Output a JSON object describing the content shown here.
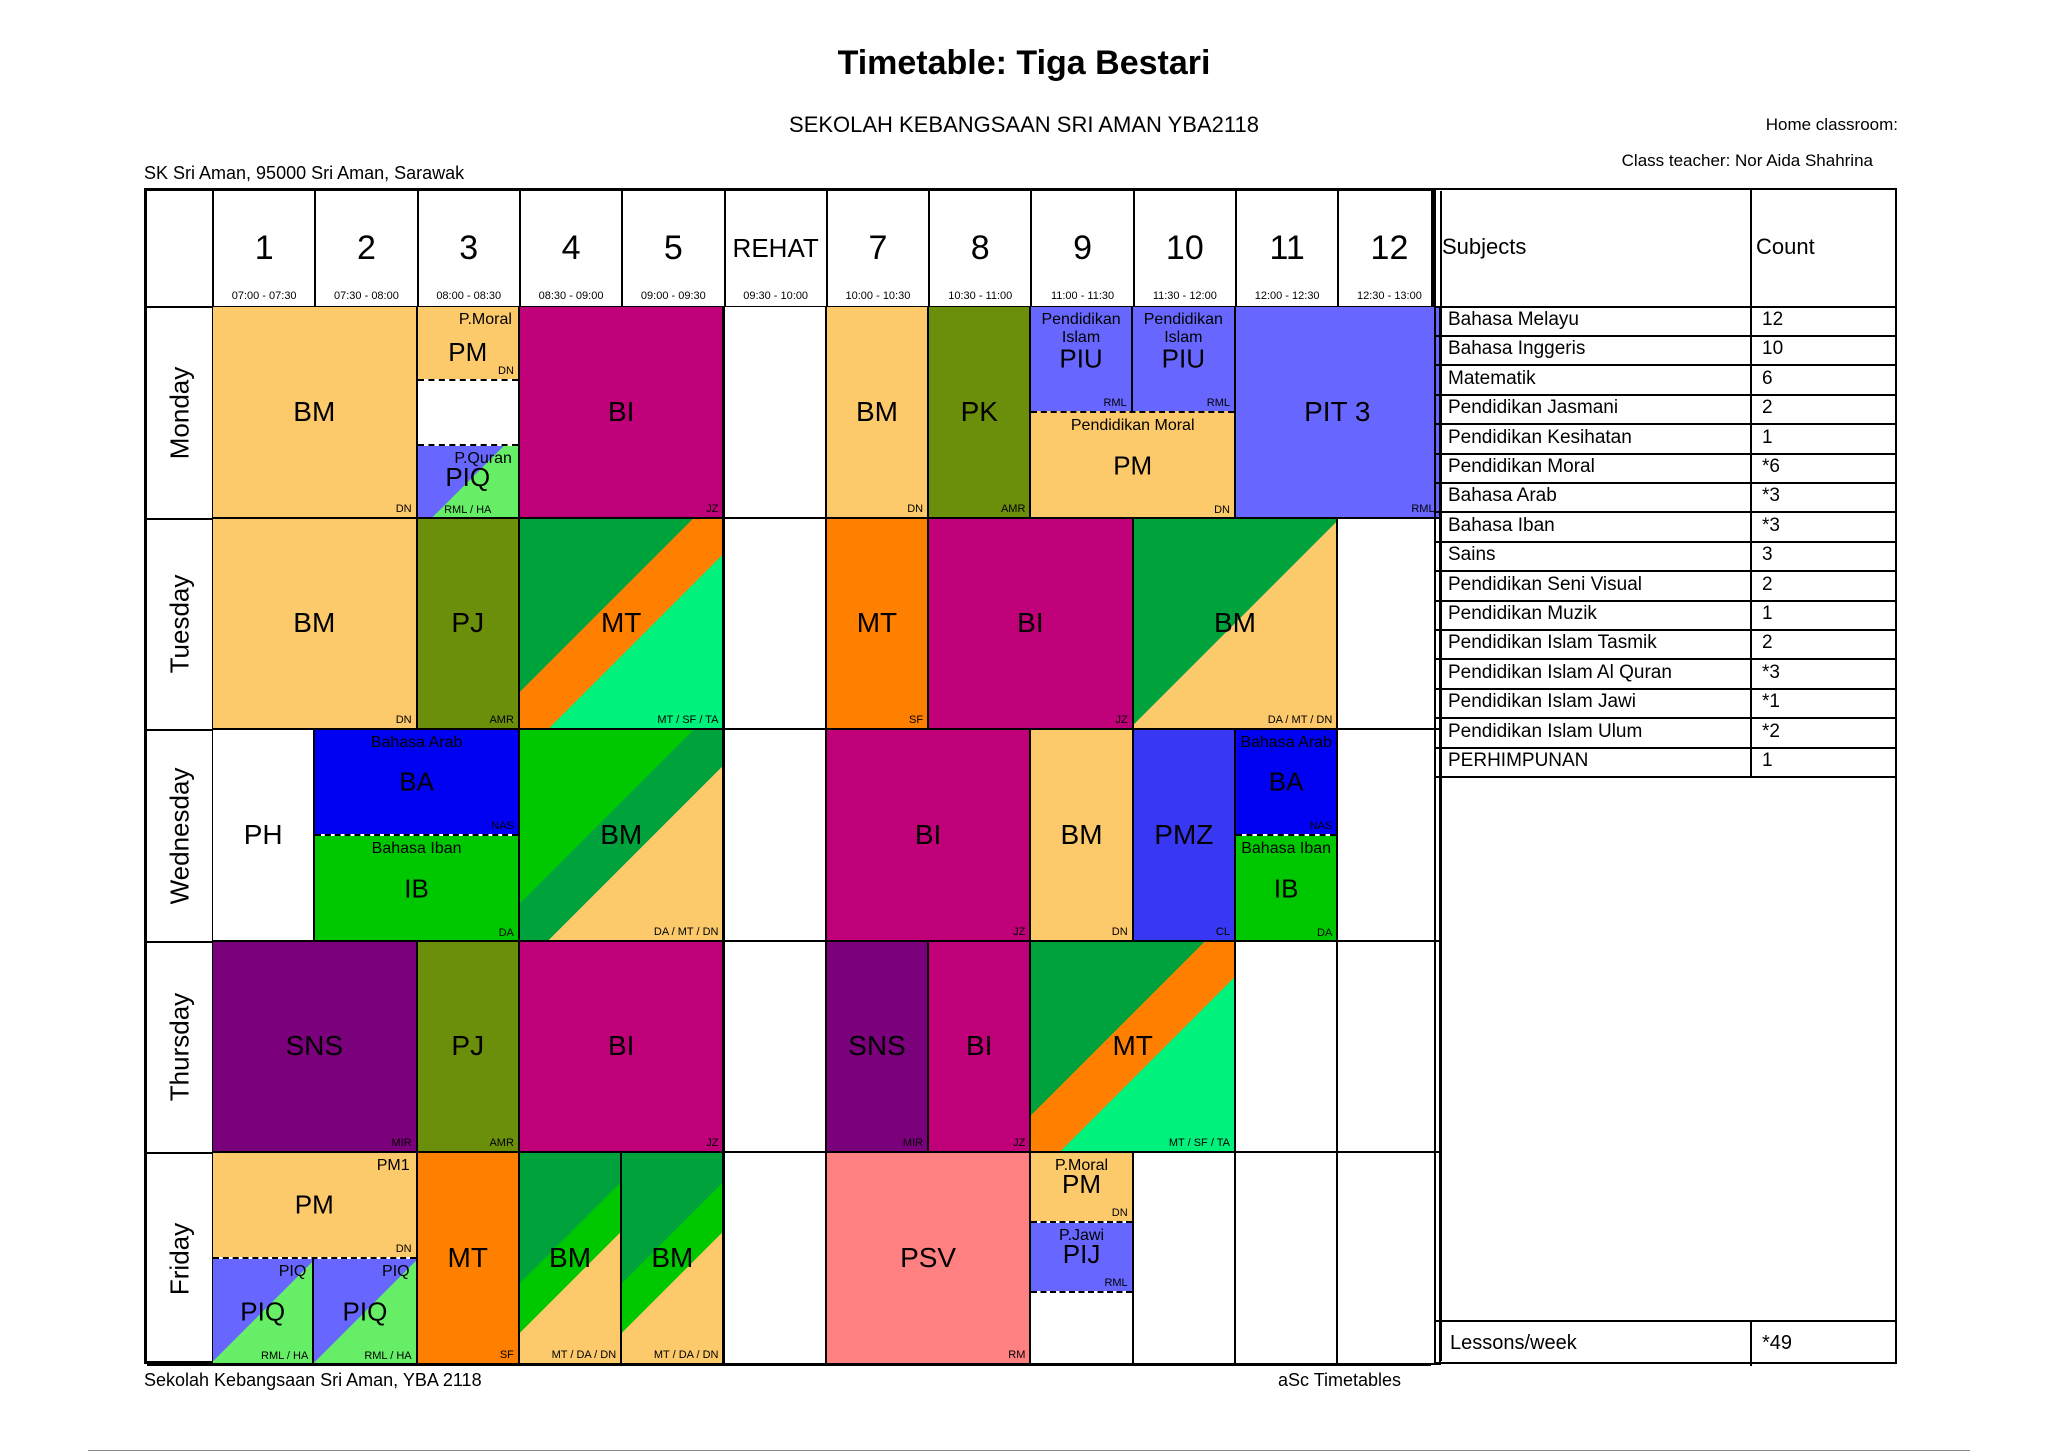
{
  "header": {
    "title": "Timetable: Tiga Bestari",
    "school": "SEKOLAH KEBANGSAAN SRI AMAN YBA2118",
    "address": "SK Sri Aman, 95000 Sri Aman, Sarawak",
    "home_classroom": "Home classroom:",
    "class_teacher": "Class teacher: Nor Aida Shahrina"
  },
  "footer": {
    "left": "Sekolah Kebangsaan Sri Aman, YBA 2118",
    "right": "aSc Timetables"
  },
  "colors": {
    "bm": "#FCC96B",
    "bi": "#BF0078",
    "pk": "#6B8E0B",
    "piu": "#6767FF",
    "pit": "#6767FF",
    "mt_a": "#00A23C",
    "mt_b": "#FF7F00",
    "mt_c": "#00F27D",
    "orange": "#FF8000",
    "ba": "#0000F2",
    "ib": "#00C800",
    "sns": "#7B007B",
    "pmz": "#3838F2",
    "psv": "#FF8080",
    "piq_a": "#6767FF",
    "piq_b": "#66EE66"
  },
  "periods": [
    {
      "name": "1",
      "time": "07:00 - 07:30"
    },
    {
      "name": "2",
      "time": "07:30 - 08:00"
    },
    {
      "name": "3",
      "time": "08:00 - 08:30"
    },
    {
      "name": "4",
      "time": "08:30 - 09:00"
    },
    {
      "name": "5",
      "time": "09:00 - 09:30"
    },
    {
      "name": "REHAT",
      "time": "09:30 - 10:00"
    },
    {
      "name": "7",
      "time": "10:00 - 10:30"
    },
    {
      "name": "8",
      "time": "10:30 - 11:00"
    },
    {
      "name": "9",
      "time": "11:00 - 11:30"
    },
    {
      "name": "10",
      "time": "11:30 - 12:00"
    },
    {
      "name": "11",
      "time": "12:00 - 12:30"
    },
    {
      "name": "12",
      "time": "12:30 - 13:00"
    }
  ],
  "days": [
    "Monday",
    "Tuesday",
    "Wednesday",
    "Thursday",
    "Friday"
  ],
  "lessons": {
    "mon_bm": {
      "subject": "BM",
      "teacher": "DN"
    },
    "mon_pm_top": {
      "label": "P.Moral",
      "subject": "PM",
      "teacher": "DN"
    },
    "mon_piq": {
      "label": "P.Quran",
      "subject": "PIQ",
      "teacher": "RML / HA"
    },
    "mon_bi": {
      "subject": "BI",
      "teacher": "JZ"
    },
    "mon_bm7": {
      "subject": "BM",
      "teacher": "DN"
    },
    "mon_pk": {
      "subject": "PK",
      "teacher": "AMR"
    },
    "mon_piu1": {
      "label": "Pendidikan Islam",
      "subject": "PIU",
      "teacher": "RML"
    },
    "mon_piu2": {
      "label": "Pendidikan Islam",
      "subject": "PIU",
      "teacher": "RML"
    },
    "mon_pm9": {
      "label": "Pendidikan Moral",
      "subject": "PM",
      "teacher": "DN"
    },
    "mon_pit": {
      "subject": "PIT 3",
      "teacher": "RML"
    },
    "tue_bm": {
      "subject": "BM",
      "teacher": "DN"
    },
    "tue_pj": {
      "subject": "PJ",
      "teacher": "AMR"
    },
    "tue_mt": {
      "subject": "MT",
      "teacher": "MT / SF / TA"
    },
    "tue_mt7": {
      "subject": "MT",
      "teacher": "SF"
    },
    "tue_bi": {
      "subject": "BI",
      "teacher": "JZ"
    },
    "tue_bm9": {
      "subject": "BM",
      "teacher": "DA / MT / DN"
    },
    "wed_ph": {
      "subject": "PH"
    },
    "wed_ba": {
      "label": "Bahasa Arab",
      "subject": "BA",
      "teacher": "NAS"
    },
    "wed_ib": {
      "label": "Bahasa Iban",
      "subject": "IB",
      "teacher": "DA"
    },
    "wed_bm": {
      "subject": "BM",
      "teacher": "DA / MT / DN"
    },
    "wed_bi": {
      "subject": "BI",
      "teacher": "JZ"
    },
    "wed_bm9": {
      "subject": "BM",
      "teacher": "DN"
    },
    "wed_pmz": {
      "subject": "PMZ",
      "teacher": "CL"
    },
    "wed_ba11": {
      "label": "Bahasa Arab",
      "subject": "BA",
      "teacher": "NAS"
    },
    "wed_ib11": {
      "label": "Bahasa Iban",
      "subject": "IB",
      "teacher": "DA"
    },
    "thu_sns": {
      "subject": "SNS",
      "teacher": "MIR"
    },
    "thu_pj": {
      "subject": "PJ",
      "teacher": "AMR"
    },
    "thu_bi": {
      "subject": "BI",
      "teacher": "JZ"
    },
    "thu_sns7": {
      "subject": "SNS",
      "teacher": "MIR"
    },
    "thu_bi8": {
      "subject": "BI",
      "teacher": "JZ"
    },
    "thu_mt": {
      "subject": "MT",
      "teacher": "MT / SF / TA"
    },
    "fri_pm": {
      "label": "PM1",
      "subject": "PM",
      "teacher": "DN"
    },
    "fri_piq1": {
      "label": "PIQ",
      "subject": "PIQ",
      "teacher": "RML / HA"
    },
    "fri_piq2": {
      "label": "PIQ",
      "subject": "PIQ",
      "teacher": "RML / HA"
    },
    "fri_mt": {
      "subject": "MT",
      "teacher": "SF"
    },
    "fri_bm4": {
      "subject": "BM",
      "teacher": "MT / DA / DN"
    },
    "fri_bm5": {
      "subject": "BM",
      "teacher": "MT / DA / DN"
    },
    "fri_psv": {
      "subject": "PSV",
      "teacher": "RM"
    },
    "fri_pm9": {
      "label": "P.Moral",
      "subject": "PM",
      "teacher": "DN"
    },
    "fri_pij": {
      "label": "P.Jawi",
      "subject": "PIJ",
      "teacher": "RML"
    }
  },
  "subjects_table": {
    "col_subjects": "Subjects",
    "col_count": "Count",
    "rows": [
      {
        "name": "Bahasa Melayu",
        "count": "12"
      },
      {
        "name": "Bahasa Inggeris",
        "count": "10"
      },
      {
        "name": "Matematik",
        "count": "6"
      },
      {
        "name": "Pendidikan Jasmani",
        "count": "2"
      },
      {
        "name": "Pendidikan Kesihatan",
        "count": "1"
      },
      {
        "name": "Pendidikan Moral",
        "count": "*6"
      },
      {
        "name": "Bahasa Arab",
        "count": "*3"
      },
      {
        "name": "Bahasa Iban",
        "count": "*3"
      },
      {
        "name": "Sains",
        "count": "3"
      },
      {
        "name": "Pendidikan Seni Visual",
        "count": "2"
      },
      {
        "name": "Pendidikan Muzik",
        "count": "1"
      },
      {
        "name": "Pendidikan Islam Tasmik",
        "count": "2"
      },
      {
        "name": "Pendidikan Islam Al Quran",
        "count": "*3"
      },
      {
        "name": "Pendidikan Islam Jawi",
        "count": "*1"
      },
      {
        "name": "Pendidikan Islam Ulum",
        "count": "*2"
      },
      {
        "name": "PERHIMPUNAN",
        "count": "1"
      }
    ],
    "lessons_label": "Lessons/week",
    "lessons_count": "*49"
  }
}
